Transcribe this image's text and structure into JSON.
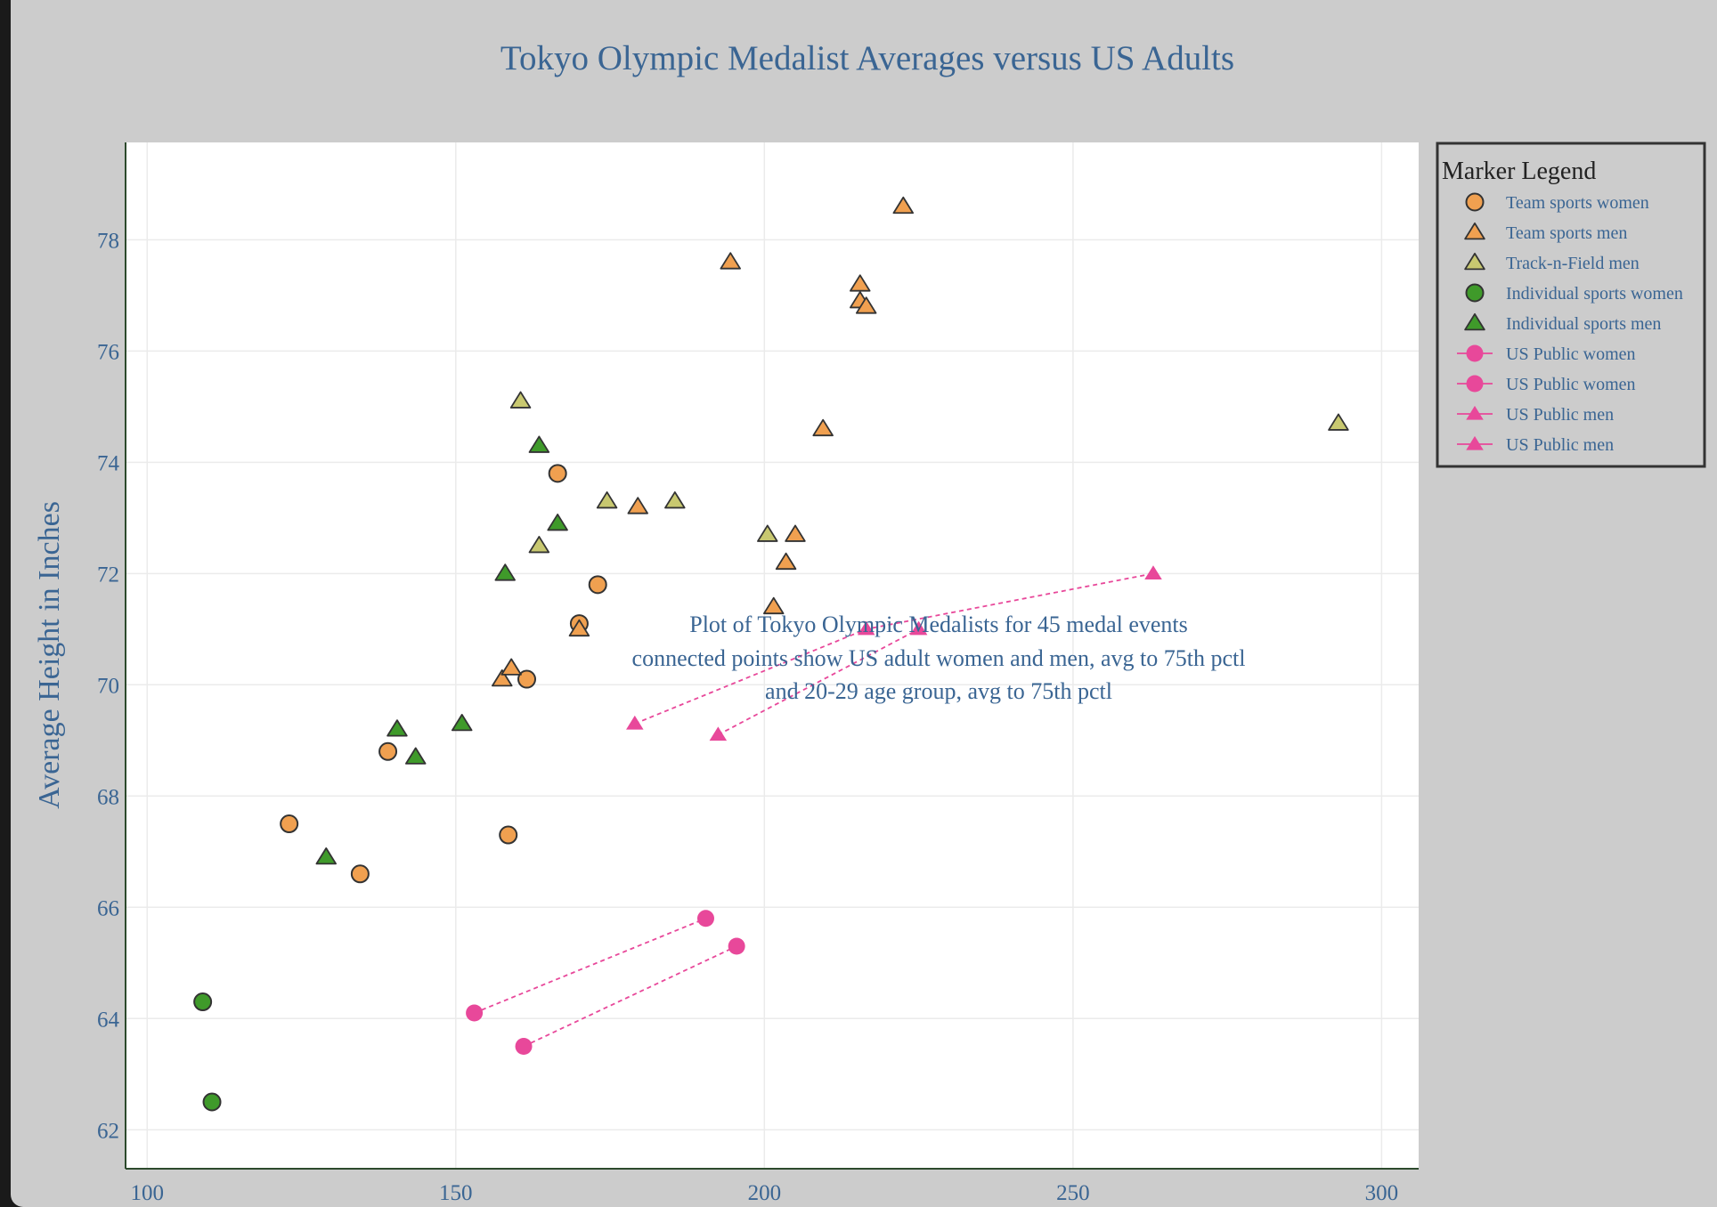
{
  "chart_data": {
    "type": "scatter",
    "title": "Tokyo Olympic Medalist Averages versus US Adults",
    "xlabel": "",
    "ylabel": "Average Height in Inches",
    "xlim": [
      96.5,
      306
    ],
    "ylim": [
      61.3,
      79.75
    ],
    "xticks": [
      100,
      150,
      200,
      250,
      300
    ],
    "yticks": [
      62,
      64,
      66,
      68,
      70,
      72,
      74,
      76,
      78
    ],
    "grid": true,
    "legend": {
      "title": "Marker Legend",
      "placement": "right",
      "items": [
        {
          "label": "Team sports women",
          "symbol": "circle",
          "color": "#f0a050",
          "line": false
        },
        {
          "label": "Team sports men",
          "symbol": "triangle",
          "color": "#f0a050",
          "line": false
        },
        {
          "label": "Track-n-Field men",
          "symbol": "triangle",
          "color": "#c8c870",
          "line": false
        },
        {
          "label": "Individual sports women",
          "symbol": "circle",
          "color": "#3f9a2a",
          "line": false
        },
        {
          "label": "Individual sports men",
          "symbol": "triangle",
          "color": "#3f9a2a",
          "line": false
        },
        {
          "label": "US Public women",
          "symbol": "circle",
          "color": "#e8489a",
          "line": true
        },
        {
          "label": "US Public women",
          "symbol": "circle",
          "color": "#e8489a",
          "line": true
        },
        {
          "label": "US Public men",
          "symbol": "triangle",
          "color": "#e8489a",
          "line": true
        },
        {
          "label": "US Public men",
          "symbol": "triangle",
          "color": "#e8489a",
          "line": true
        }
      ]
    },
    "annotation": [
      "Plot of Tokyo Olympic Medalists for 45 medal events",
      "connected points show US adult women and men, avg to 75th pctl",
      "and 20-29 age group, avg to 75th pctl"
    ],
    "series": [
      {
        "name": "Team sports women",
        "symbol": "circle",
        "color": "#f0a050",
        "mode": "markers",
        "points": [
          [
            123,
            67.5
          ],
          [
            134.5,
            66.6
          ],
          [
            139,
            68.8
          ],
          [
            158.5,
            67.3
          ],
          [
            161.5,
            70.1
          ],
          [
            166.5,
            73.8
          ],
          [
            170,
            71.1
          ],
          [
            173,
            71.8
          ]
        ]
      },
      {
        "name": "Team sports men",
        "symbol": "triangle",
        "color": "#f0a050",
        "mode": "markers",
        "points": [
          [
            157.5,
            70.1
          ],
          [
            159,
            70.3
          ],
          [
            170,
            71.0
          ],
          [
            179.5,
            73.2
          ],
          [
            194.5,
            77.6
          ],
          [
            201.5,
            71.4
          ],
          [
            203.5,
            72.2
          ],
          [
            205,
            72.7
          ],
          [
            209.5,
            74.6
          ],
          [
            215.5,
            77.2
          ],
          [
            215.5,
            76.9
          ],
          [
            216.5,
            76.8
          ],
          [
            222.5,
            78.6
          ]
        ]
      },
      {
        "name": "Track-n-Field men",
        "symbol": "triangle",
        "color": "#c8c870",
        "mode": "markers",
        "points": [
          [
            160.5,
            75.1
          ],
          [
            163.5,
            72.5
          ],
          [
            174.5,
            73.3
          ],
          [
            185.5,
            73.3
          ],
          [
            200.5,
            72.7
          ],
          [
            293,
            74.7
          ]
        ]
      },
      {
        "name": "Individual sports women",
        "symbol": "circle",
        "color": "#3f9a2a",
        "mode": "markers",
        "points": [
          [
            109,
            64.3
          ],
          [
            110.5,
            62.5
          ]
        ]
      },
      {
        "name": "Individual sports men",
        "symbol": "triangle",
        "color": "#3f9a2a",
        "mode": "markers",
        "points": [
          [
            129,
            66.9
          ],
          [
            140.5,
            69.2
          ],
          [
            143.5,
            68.7
          ],
          [
            151,
            69.3
          ],
          [
            158,
            72.0
          ],
          [
            163.5,
            74.3
          ],
          [
            166.5,
            72.9
          ]
        ]
      },
      {
        "name": "US Public women",
        "symbol": "circle",
        "color": "#e8489a",
        "mode": "lines+markers",
        "points": [
          [
            153,
            64.1
          ],
          [
            190.5,
            65.8
          ]
        ]
      },
      {
        "name": "US Public women",
        "symbol": "circle",
        "color": "#e8489a",
        "mode": "lines+markers",
        "points": [
          [
            161,
            63.5
          ],
          [
            195.5,
            65.3
          ]
        ]
      },
      {
        "name": "US Public men",
        "symbol": "triangle",
        "color": "#e8489a",
        "mode": "lines+markers",
        "points": [
          [
            179,
            69.3
          ],
          [
            216.5,
            71.0
          ],
          [
            263,
            72.0
          ]
        ]
      },
      {
        "name": "US Public men",
        "symbol": "triangle",
        "color": "#e8489a",
        "mode": "lines+markers",
        "points": [
          [
            192.5,
            69.1
          ],
          [
            225,
            71.0
          ]
        ]
      }
    ]
  }
}
